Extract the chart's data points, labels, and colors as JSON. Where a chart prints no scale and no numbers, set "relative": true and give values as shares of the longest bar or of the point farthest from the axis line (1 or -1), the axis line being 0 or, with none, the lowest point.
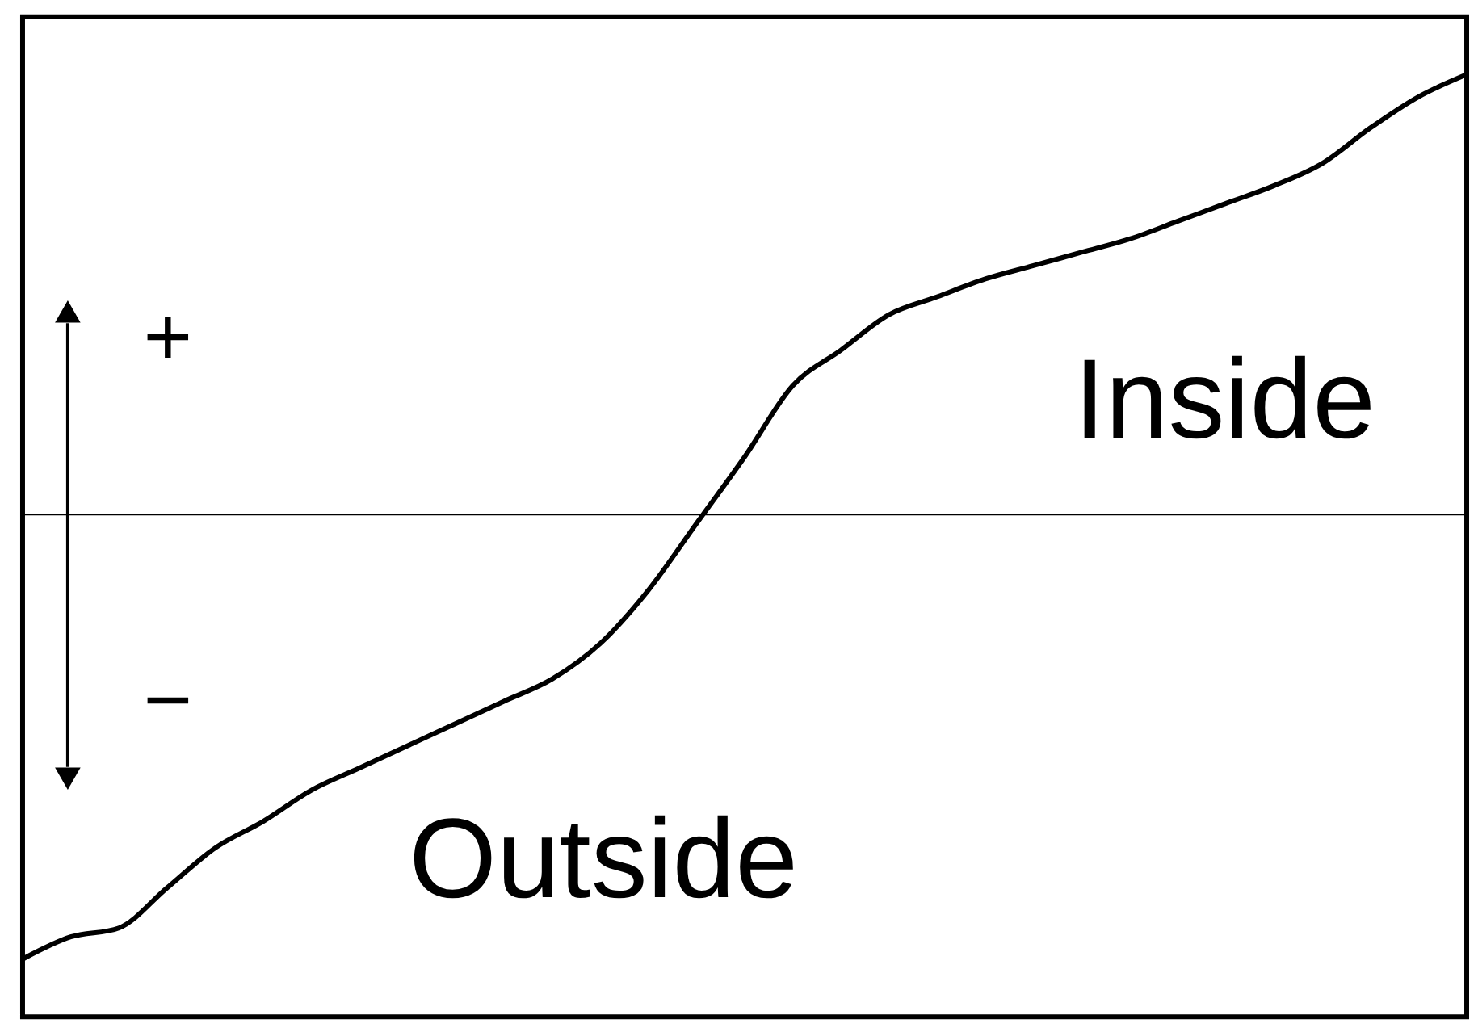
{
  "chart_data": {
    "type": "line",
    "relative": true,
    "color": "#000000",
    "categories": [
      null,
      null,
      null,
      null,
      null,
      null,
      null,
      null,
      null,
      null,
      null,
      null,
      null,
      null,
      null,
      null,
      null,
      null,
      null,
      null,
      null,
      null,
      null,
      null,
      null,
      null,
      null,
      null,
      null,
      null,
      null
    ],
    "values": [
      -1.0,
      -0.95,
      -0.93,
      -0.84,
      -0.75,
      -0.69,
      -0.62,
      -0.57,
      -0.52,
      -0.47,
      -0.42,
      -0.37,
      -0.29,
      -0.17,
      -0.02,
      0.13,
      0.29,
      0.37,
      0.45,
      0.49,
      0.53,
      0.56,
      0.59,
      0.62,
      0.66,
      0.7,
      0.74,
      0.79,
      0.87,
      0.94,
      0.99
    ],
    "annotations": [
      "+",
      "−",
      "Inside",
      "Outside"
    ],
    "grid": false,
    "tick_labels": false
  }
}
